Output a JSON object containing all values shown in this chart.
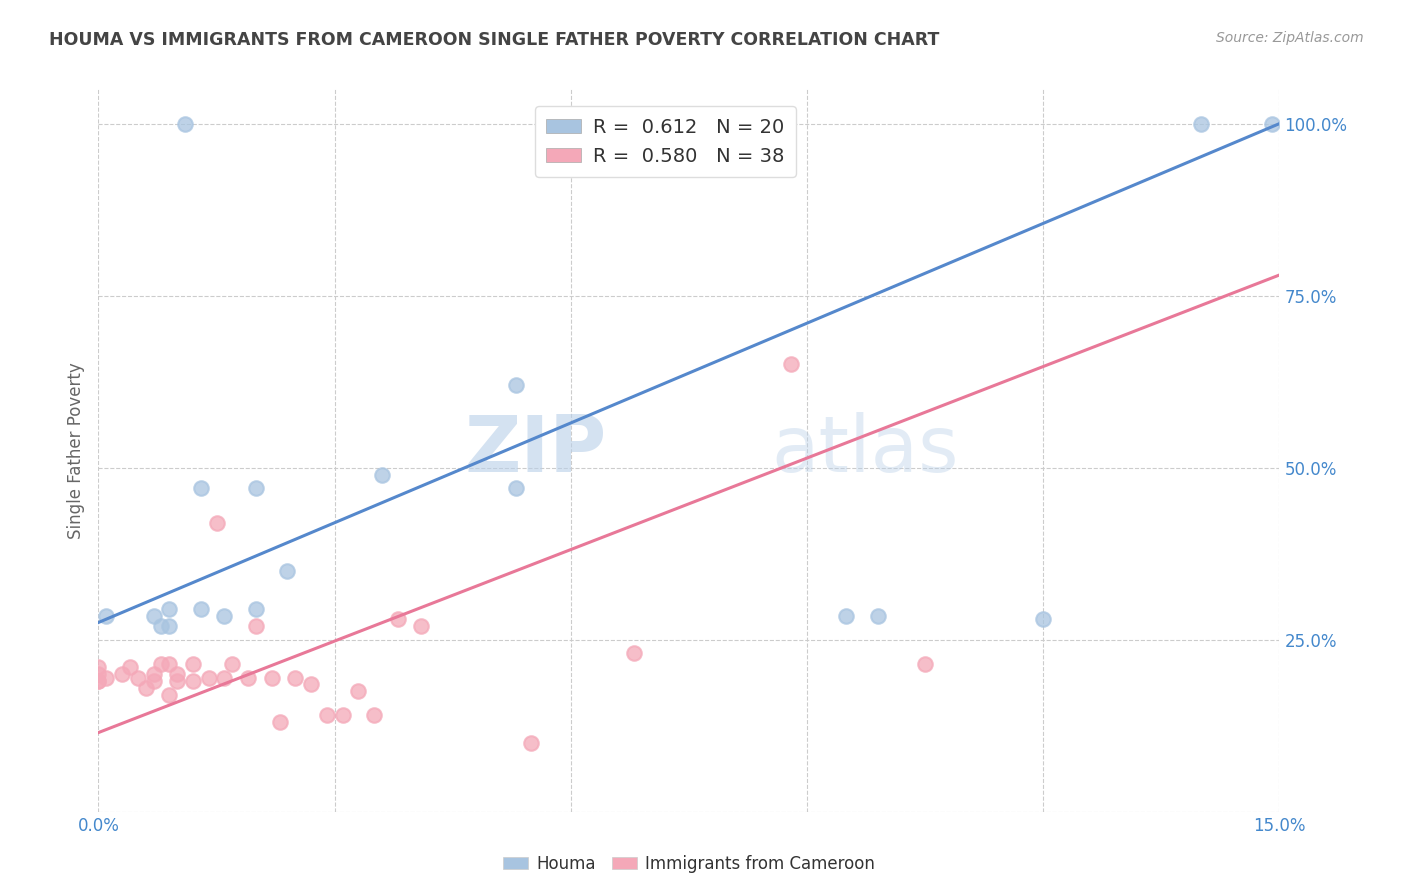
{
  "title": "HOUMA VS IMMIGRANTS FROM CAMEROON SINGLE FATHER POVERTY CORRELATION CHART",
  "source": "Source: ZipAtlas.com",
  "ylabel": "Single Father Poverty",
  "xlim": [
    0.0,
    0.15
  ],
  "ylim": [
    0.0,
    1.05
  ],
  "xticks": [
    0.0,
    0.03,
    0.06,
    0.09,
    0.12,
    0.15
  ],
  "xticklabels": [
    "0.0%",
    "",
    "",
    "",
    "",
    "15.0%"
  ],
  "yticks_right": [
    0.0,
    0.25,
    0.5,
    0.75,
    1.0
  ],
  "yticklabels_right": [
    "",
    "25.0%",
    "50.0%",
    "75.0%",
    "100.0%"
  ],
  "legend_labels": [
    "R =  0.612   N = 20",
    "R =  0.580   N = 38"
  ],
  "houma_color": "#a8c4e0",
  "cameroon_color": "#f4a8b8",
  "houma_line_color": "#5588cc",
  "cameroon_line_color": "#e87898",
  "watermark_zip": "ZIP",
  "watermark_atlas": "atlas",
  "background_color": "#ffffff",
  "title_color": "#444444",
  "axis_label_color": "#666666",
  "tick_color": "#4488cc",
  "grid_color": "#cccccc",
  "houma_points_x": [
    0.001,
    0.007,
    0.008,
    0.009,
    0.009,
    0.011,
    0.013,
    0.013,
    0.016,
    0.02,
    0.02,
    0.024,
    0.036,
    0.053,
    0.053,
    0.095,
    0.099,
    0.12,
    0.14,
    0.149
  ],
  "houma_points_y": [
    0.285,
    0.285,
    0.27,
    0.27,
    0.295,
    1.0,
    0.47,
    0.295,
    0.285,
    0.295,
    0.47,
    0.35,
    0.49,
    0.62,
    0.47,
    0.285,
    0.285,
    0.28,
    1.0,
    1.0
  ],
  "cameroon_points_x": [
    0.0,
    0.0,
    0.0,
    0.0,
    0.001,
    0.003,
    0.004,
    0.005,
    0.006,
    0.007,
    0.007,
    0.008,
    0.009,
    0.009,
    0.01,
    0.01,
    0.012,
    0.012,
    0.014,
    0.015,
    0.016,
    0.017,
    0.019,
    0.02,
    0.022,
    0.023,
    0.025,
    0.027,
    0.029,
    0.031,
    0.033,
    0.035,
    0.038,
    0.041,
    0.055,
    0.068,
    0.088,
    0.105
  ],
  "cameroon_points_y": [
    0.19,
    0.19,
    0.2,
    0.21,
    0.195,
    0.2,
    0.21,
    0.195,
    0.18,
    0.19,
    0.2,
    0.215,
    0.17,
    0.215,
    0.19,
    0.2,
    0.19,
    0.215,
    0.195,
    0.42,
    0.195,
    0.215,
    0.195,
    0.27,
    0.195,
    0.13,
    0.195,
    0.185,
    0.14,
    0.14,
    0.175,
    0.14,
    0.28,
    0.27,
    0.1,
    0.23,
    0.65,
    0.215
  ],
  "houma_line_x": [
    0.0,
    0.15
  ],
  "houma_line_y": [
    0.275,
    1.0
  ],
  "cameroon_line_x": [
    0.0,
    0.15
  ],
  "cameroon_line_y": [
    0.115,
    0.78
  ]
}
